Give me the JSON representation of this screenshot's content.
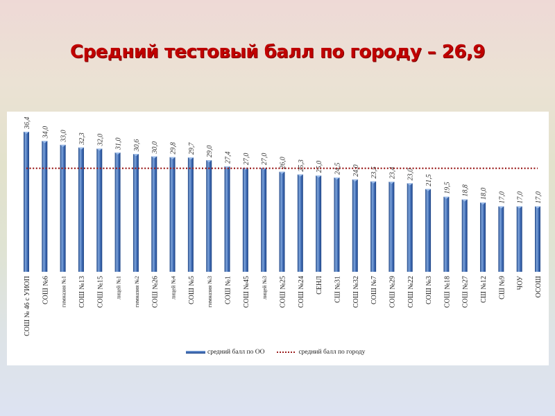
{
  "title": "Средний тестовый балл по городу – 26,9",
  "legend": {
    "bar_label": "средний балл по ОО",
    "line_label": "средний балл по городу"
  },
  "colors": {
    "title": "#c00000",
    "bar": "#3b67b0",
    "bar_light": "#7ea5dc",
    "bar_dark": "#1f4585",
    "city_line": "#9b1c1c"
  },
  "chart_data": {
    "type": "bar",
    "title": "Средний тестовый балл по городу – 26,9",
    "xlabel": "",
    "ylabel": "",
    "categories": [
      "СОШ № 46 с УИОП",
      "СОШ №6",
      "гимназия №1",
      "СОШ №13",
      "СОШ №15",
      "лицей №1",
      "гимназия №2",
      "СОШ №26",
      "лицей №4",
      "СОШ №5",
      "гимназия №3",
      "СОШ №1",
      "СОШ №45",
      "лицей №3",
      "СОШ №25",
      "СОШ №24",
      "СЕНЛ",
      "СШ №31",
      "СОШ №32",
      "СОШ №7",
      "СОШ №29",
      "СОШ №22",
      "СОШ №3",
      "СОШ №18",
      "СОШ №27",
      "СШ №12",
      "СШ №9",
      "ЧОУ",
      "ОСОШ"
    ],
    "series": [
      {
        "name": "средний балл по ОО",
        "values": [
          36.4,
          34.0,
          33.0,
          32.3,
          32.0,
          31.0,
          30.6,
          30.0,
          29.8,
          29.7,
          29.0,
          27.4,
          27.0,
          27.0,
          26.0,
          25.3,
          25.0,
          24.5,
          24.0,
          23.5,
          23.4,
          23.0,
          21.5,
          19.5,
          18.8,
          18.0,
          17.0,
          17.0,
          17.0
        ]
      },
      {
        "name": "средний балл по городу",
        "type": "line",
        "style": "dotted",
        "value": 26.9
      }
    ],
    "value_labels": [
      "36,4",
      "34,0",
      "33,0",
      "32,3",
      "32,0",
      "31,0",
      "30,6",
      "30,0",
      "29,8",
      "29,7",
      "29,0",
      "27,4",
      "27,0",
      "27,0",
      "26,0",
      "25,3",
      "25,0",
      "24,5",
      "24,0",
      "23,5",
      "23,4",
      "23,0",
      "21,5",
      "19,5",
      "18,8",
      "18,0",
      "17,0",
      "17,0",
      "17,0"
    ],
    "ylim": [
      0,
      40
    ],
    "grid": false,
    "legend_position": "bottom"
  }
}
